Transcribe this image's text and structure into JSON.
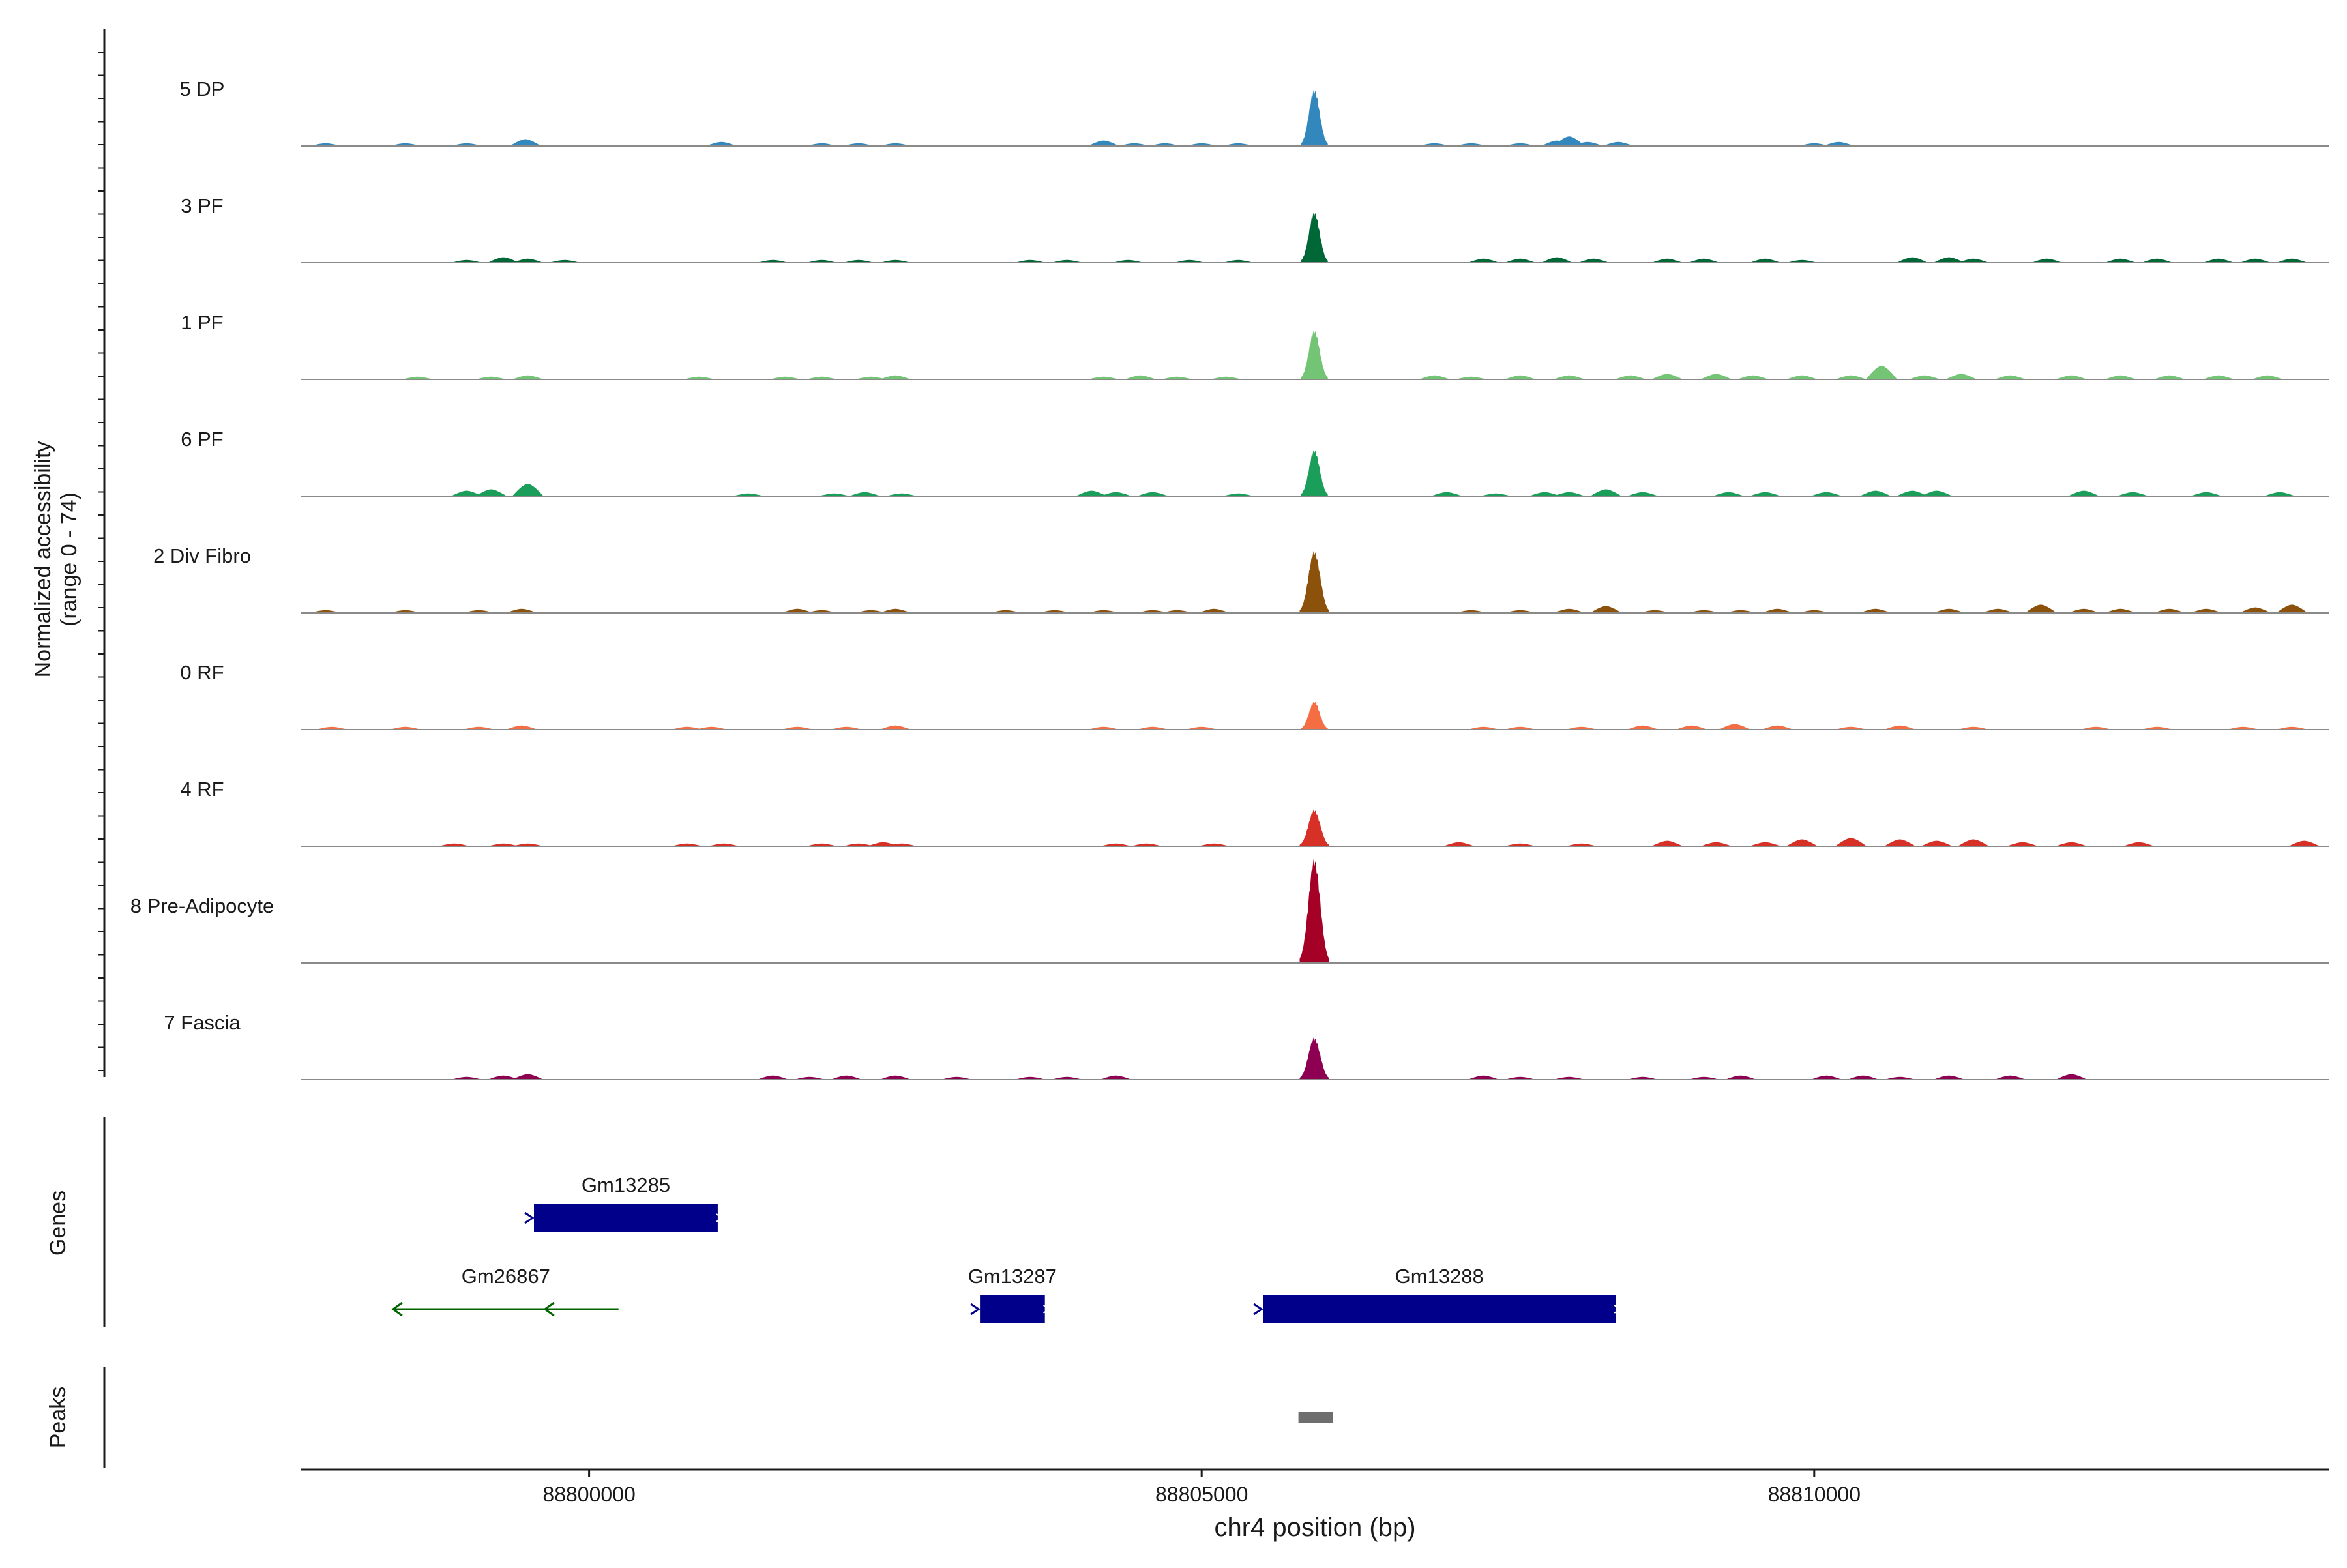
{
  "chart_data": {
    "type": "area",
    "subtype": "genome-coverage-track",
    "y_axis_title_line1": "Normalized accessibility",
    "y_axis_title_line2": "(range 0 - 74)",
    "y_range": [
      0,
      74
    ],
    "x_axis_title": "chr4 position (bp)",
    "x_range": [
      88797650,
      88814200
    ],
    "x_ticks": [
      88800000,
      88805000,
      88810000
    ],
    "x_tick_labels": [
      "88800000",
      "88805000",
      "88810000"
    ],
    "tracks": [
      {
        "name": "5 DP",
        "color": "#3288BD",
        "main_peak": {
          "center": 88805920,
          "halfwidth": 110,
          "height": 40
        },
        "bumps": [
          [
            88797850,
            2
          ],
          [
            88798500,
            2
          ],
          [
            88799000,
            2
          ],
          [
            88799480,
            5
          ],
          [
            88801080,
            3
          ],
          [
            88801900,
            2
          ],
          [
            88802200,
            2
          ],
          [
            88802500,
            2
          ],
          [
            88804200,
            4
          ],
          [
            88804450,
            2
          ],
          [
            88804700,
            2
          ],
          [
            88805000,
            2
          ],
          [
            88805300,
            2
          ],
          [
            88806900,
            2
          ],
          [
            88807200,
            2
          ],
          [
            88807600,
            2
          ],
          [
            88807900,
            4
          ],
          [
            88808000,
            7
          ],
          [
            88808150,
            3
          ],
          [
            88808400,
            3
          ],
          [
            88810000,
            2
          ],
          [
            88810200,
            3
          ]
        ]
      },
      {
        "name": "3 PF",
        "color": "#006837",
        "main_peak": {
          "center": 88805920,
          "halfwidth": 110,
          "height": 36
        },
        "bumps": [
          [
            88799000,
            2
          ],
          [
            88799300,
            4
          ],
          [
            88799500,
            3
          ],
          [
            88799800,
            2
          ],
          [
            88801500,
            2
          ],
          [
            88801900,
            2
          ],
          [
            88802200,
            2
          ],
          [
            88802500,
            2
          ],
          [
            88803600,
            2
          ],
          [
            88803900,
            2
          ],
          [
            88804400,
            2
          ],
          [
            88804900,
            2
          ],
          [
            88805300,
            2
          ],
          [
            88807300,
            3
          ],
          [
            88807600,
            3
          ],
          [
            88807900,
            4
          ],
          [
            88808200,
            3
          ],
          [
            88808800,
            3
          ],
          [
            88809100,
            3
          ],
          [
            88809600,
            3
          ],
          [
            88809900,
            2
          ],
          [
            88810800,
            4
          ],
          [
            88811100,
            4
          ],
          [
            88811300,
            3
          ],
          [
            88811900,
            3
          ],
          [
            88812500,
            3
          ],
          [
            88812800,
            3
          ],
          [
            88813300,
            3
          ],
          [
            88813600,
            3
          ],
          [
            88813900,
            3
          ]
        ]
      },
      {
        "name": "1 PF",
        "color": "#74C476",
        "main_peak": {
          "center": 88805920,
          "halfwidth": 110,
          "height": 35
        },
        "bumps": [
          [
            88798600,
            2
          ],
          [
            88799200,
            2
          ],
          [
            88799500,
            3
          ],
          [
            88800900,
            2
          ],
          [
            88801600,
            2
          ],
          [
            88801900,
            2
          ],
          [
            88802300,
            2
          ],
          [
            88802500,
            3
          ],
          [
            88804200,
            2
          ],
          [
            88804500,
            3
          ],
          [
            88804800,
            2
          ],
          [
            88805200,
            2
          ],
          [
            88806900,
            3
          ],
          [
            88807200,
            2
          ],
          [
            88807600,
            3
          ],
          [
            88808000,
            3
          ],
          [
            88808500,
            3
          ],
          [
            88808800,
            4
          ],
          [
            88809200,
            4
          ],
          [
            88809500,
            3
          ],
          [
            88809900,
            3
          ],
          [
            88810300,
            3
          ],
          [
            88810550,
            10
          ],
          [
            88810900,
            3
          ],
          [
            88811200,
            4
          ],
          [
            88811600,
            3
          ],
          [
            88812100,
            3
          ],
          [
            88812500,
            3
          ],
          [
            88812900,
            3
          ],
          [
            88813300,
            3
          ],
          [
            88813700,
            3
          ]
        ]
      },
      {
        "name": "6 PF",
        "color": "#1B9E5A",
        "main_peak": {
          "center": 88805920,
          "halfwidth": 110,
          "height": 33
        },
        "bumps": [
          [
            88799000,
            4
          ],
          [
            88799200,
            5
          ],
          [
            88799500,
            9
          ],
          [
            88801300,
            2
          ],
          [
            88802000,
            2
          ],
          [
            88802250,
            3
          ],
          [
            88802550,
            2
          ],
          [
            88804100,
            4
          ],
          [
            88804300,
            3
          ],
          [
            88804600,
            3
          ],
          [
            88805300,
            2
          ],
          [
            88807000,
            3
          ],
          [
            88807400,
            2
          ],
          [
            88807800,
            3
          ],
          [
            88808000,
            3
          ],
          [
            88808300,
            5
          ],
          [
            88808600,
            3
          ],
          [
            88809300,
            3
          ],
          [
            88809600,
            3
          ],
          [
            88810100,
            3
          ],
          [
            88810500,
            4
          ],
          [
            88810800,
            4
          ],
          [
            88811000,
            4
          ],
          [
            88812200,
            4
          ],
          [
            88812600,
            3
          ],
          [
            88813200,
            3
          ],
          [
            88813800,
            3
          ]
        ]
      },
      {
        "name": "2 Div Fibro",
        "color": "#8C510A",
        "main_peak": {
          "center": 88805920,
          "halfwidth": 120,
          "height": 44
        },
        "bumps": [
          [
            88797850,
            2
          ],
          [
            88798500,
            2
          ],
          [
            88799100,
            2
          ],
          [
            88799450,
            3
          ],
          [
            88801700,
            3
          ],
          [
            88801900,
            2
          ],
          [
            88802300,
            2
          ],
          [
            88802500,
            3
          ],
          [
            88803400,
            2
          ],
          [
            88803800,
            2
          ],
          [
            88804200,
            2
          ],
          [
            88804600,
            2
          ],
          [
            88804800,
            2
          ],
          [
            88805100,
            3
          ],
          [
            88807200,
            2
          ],
          [
            88807600,
            2
          ],
          [
            88808000,
            3
          ],
          [
            88808300,
            5
          ],
          [
            88808700,
            2
          ],
          [
            88809100,
            2
          ],
          [
            88809400,
            2
          ],
          [
            88809700,
            3
          ],
          [
            88810000,
            2
          ],
          [
            88810500,
            3
          ],
          [
            88811100,
            3
          ],
          [
            88811500,
            3
          ],
          [
            88811850,
            6
          ],
          [
            88812200,
            3
          ],
          [
            88812500,
            3
          ],
          [
            88812900,
            3
          ],
          [
            88813200,
            3
          ],
          [
            88813600,
            4
          ],
          [
            88813900,
            6
          ]
        ]
      },
      {
        "name": "0 RF",
        "color": "#F46D43",
        "main_peak": {
          "center": 88805920,
          "halfwidth": 110,
          "height": 20
        },
        "bumps": [
          [
            88797900,
            2
          ],
          [
            88798500,
            2
          ],
          [
            88799100,
            2
          ],
          [
            88799450,
            3
          ],
          [
            88800800,
            2
          ],
          [
            88801000,
            2
          ],
          [
            88801700,
            2
          ],
          [
            88802100,
            2
          ],
          [
            88802500,
            3
          ],
          [
            88804200,
            2
          ],
          [
            88804600,
            2
          ],
          [
            88805000,
            2
          ],
          [
            88807300,
            2
          ],
          [
            88807600,
            2
          ],
          [
            88808100,
            2
          ],
          [
            88808600,
            3
          ],
          [
            88809000,
            3
          ],
          [
            88809350,
            4
          ],
          [
            88809700,
            3
          ],
          [
            88810300,
            2
          ],
          [
            88810700,
            3
          ],
          [
            88811300,
            2
          ],
          [
            88812300,
            2
          ],
          [
            88812800,
            2
          ],
          [
            88813500,
            2
          ],
          [
            88813900,
            2
          ]
        ]
      },
      {
        "name": "4 RF",
        "color": "#D73027",
        "main_peak": {
          "center": 88805920,
          "halfwidth": 120,
          "height": 26
        },
        "bumps": [
          [
            88798900,
            2
          ],
          [
            88799300,
            2
          ],
          [
            88799500,
            2
          ],
          [
            88800800,
            2
          ],
          [
            88801100,
            2
          ],
          [
            88801900,
            2
          ],
          [
            88802200,
            2
          ],
          [
            88802400,
            3
          ],
          [
            88802550,
            2
          ],
          [
            88804300,
            2
          ],
          [
            88804550,
            2
          ],
          [
            88805100,
            2
          ],
          [
            88807100,
            3
          ],
          [
            88807600,
            2
          ],
          [
            88808100,
            2
          ],
          [
            88808800,
            4
          ],
          [
            88809200,
            3
          ],
          [
            88809600,
            3
          ],
          [
            88809900,
            5
          ],
          [
            88810300,
            6
          ],
          [
            88810700,
            5
          ],
          [
            88811000,
            4
          ],
          [
            88811300,
            5
          ],
          [
            88811700,
            3
          ],
          [
            88812100,
            3
          ],
          [
            88812650,
            3
          ],
          [
            88814000,
            4
          ]
        ]
      },
      {
        "name": "8 Pre-Adipocyte",
        "color": "#A50026",
        "main_peak": {
          "center": 88805920,
          "halfwidth": 120,
          "height": 74
        },
        "bumps": []
      },
      {
        "name": "7 Fascia",
        "color": "#8E0152",
        "main_peak": {
          "center": 88805920,
          "halfwidth": 120,
          "height": 30
        },
        "bumps": [
          [
            88799000,
            2
          ],
          [
            88799300,
            3
          ],
          [
            88799500,
            4
          ],
          [
            88801500,
            3
          ],
          [
            88801800,
            2
          ],
          [
            88802100,
            3
          ],
          [
            88802500,
            3
          ],
          [
            88803000,
            2
          ],
          [
            88803600,
            2
          ],
          [
            88803900,
            2
          ],
          [
            88804300,
            3
          ],
          [
            88807300,
            3
          ],
          [
            88807600,
            2
          ],
          [
            88808000,
            2
          ],
          [
            88808600,
            2
          ],
          [
            88809100,
            2
          ],
          [
            88809400,
            3
          ],
          [
            88810100,
            3
          ],
          [
            88810400,
            3
          ],
          [
            88810700,
            2
          ],
          [
            88811100,
            3
          ],
          [
            88811600,
            3
          ],
          [
            88812100,
            4
          ]
        ]
      }
    ],
    "genes_panel_title": "Genes",
    "genes": [
      {
        "name": "Gm13285",
        "start": 88799550,
        "end": 88801050,
        "strand": "+",
        "type": "protein_coding",
        "row": 1,
        "color": "#00008B"
      },
      {
        "name": "Gm26867",
        "start": 88798400,
        "end": 88800240,
        "strand": "-",
        "type": "non_coding",
        "row": 2,
        "color": "#006400"
      },
      {
        "name": "Gm13287",
        "start": 88803190,
        "end": 88803720,
        "strand": "+",
        "type": "protein_coding",
        "row": 2,
        "color": "#00008B"
      },
      {
        "name": "Gm13288",
        "start": 88805500,
        "end": 88808380,
        "strand": "+",
        "type": "protein_coding",
        "row": 2,
        "color": "#00008B"
      }
    ],
    "peaks_panel_title": "Peaks",
    "peaks": [
      {
        "start": 88805790,
        "end": 88806070,
        "color": "#6E6E6E"
      }
    ]
  }
}
